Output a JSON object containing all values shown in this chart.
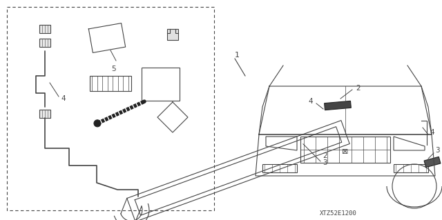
{
  "bg_color": "#ffffff",
  "line_color": "#444444",
  "dark_color": "#222222",
  "watermark": "XTZ52E1200"
}
